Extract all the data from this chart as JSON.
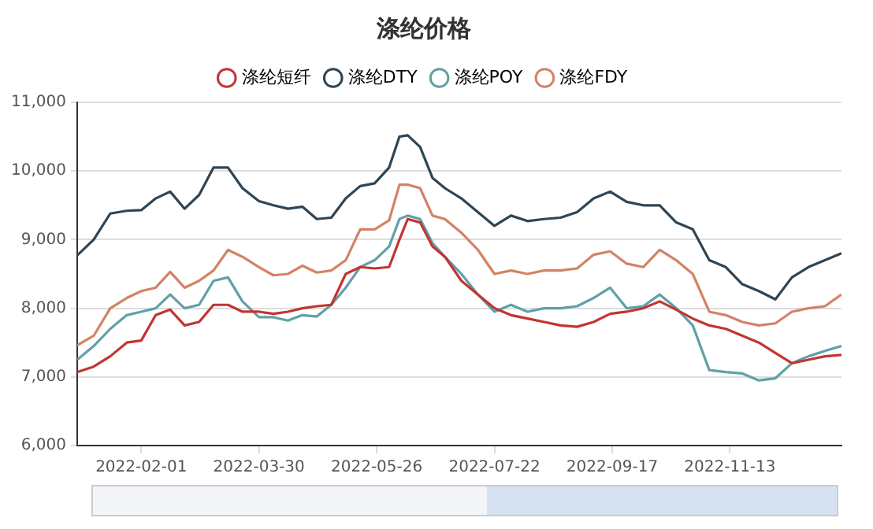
{
  "chart_data": {
    "type": "line",
    "title": "涤纶价格",
    "x": [
      "2022-01-01",
      "2022-01-09",
      "2022-01-17",
      "2022-01-25",
      "2022-02-01",
      "2022-02-08",
      "2022-02-15",
      "2022-02-22",
      "2022-03-01",
      "2022-03-08",
      "2022-03-15",
      "2022-03-22",
      "2022-03-30",
      "2022-04-06",
      "2022-04-13",
      "2022-04-20",
      "2022-04-27",
      "2022-05-04",
      "2022-05-11",
      "2022-05-18",
      "2022-05-25",
      "2022-06-01",
      "2022-06-06",
      "2022-06-10",
      "2022-06-16",
      "2022-06-22",
      "2022-06-28",
      "2022-07-06",
      "2022-07-14",
      "2022-07-22",
      "2022-07-30",
      "2022-08-07",
      "2022-08-15",
      "2022-08-23",
      "2022-08-31",
      "2022-09-08",
      "2022-09-16",
      "2022-09-24",
      "2022-10-02",
      "2022-10-10",
      "2022-10-18",
      "2022-10-26",
      "2022-11-03",
      "2022-11-11",
      "2022-11-19",
      "2022-11-27",
      "2022-12-05",
      "2022-12-13",
      "2022-12-21",
      "2022-12-29",
      "2023-01-06"
    ],
    "series": [
      {
        "name": "涤纶短纤",
        "color": "#c23531",
        "values": [
          7070,
          7150,
          7300,
          7500,
          7530,
          7900,
          7980,
          7750,
          7800,
          8050,
          8050,
          7950,
          7950,
          7920,
          7950,
          8000,
          8030,
          8050,
          8500,
          8600,
          8580,
          8600,
          9000,
          9300,
          9250,
          8900,
          8750,
          8400,
          8200,
          8000,
          7900,
          7850,
          7800,
          7750,
          7730,
          7800,
          7920,
          7950,
          8000,
          8100,
          7980,
          7850,
          7750,
          7700,
          7600,
          7500,
          7350,
          7200,
          7250,
          7300,
          7320
        ]
      },
      {
        "name": "涤纶DTY",
        "color": "#2f4554",
        "values": [
          8770,
          9000,
          9380,
          9420,
          9430,
          9600,
          9700,
          9450,
          9650,
          10050,
          10050,
          9750,
          9560,
          9500,
          9450,
          9480,
          9300,
          9320,
          9600,
          9780,
          9820,
          10050,
          10500,
          10520,
          10350,
          9900,
          9750,
          9600,
          9400,
          9200,
          9350,
          9270,
          9300,
          9320,
          9400,
          9600,
          9700,
          9550,
          9500,
          9500,
          9250,
          9150,
          8700,
          8600,
          8350,
          8250,
          8130,
          8450,
          8600,
          8700,
          8800
        ]
      },
      {
        "name": "涤纶POY",
        "color": "#61a0a8",
        "values": [
          7250,
          7450,
          7700,
          7900,
          7950,
          8000,
          8200,
          8000,
          8050,
          8400,
          8450,
          8100,
          7870,
          7870,
          7820,
          7900,
          7880,
          8050,
          8300,
          8600,
          8700,
          8900,
          9300,
          9350,
          9300,
          8950,
          8750,
          8500,
          8200,
          7950,
          8050,
          7950,
          8000,
          8000,
          8030,
          8150,
          8300,
          8000,
          8030,
          8200,
          8000,
          7750,
          7100,
          7070,
          7050,
          6950,
          6980,
          7200,
          7300,
          7380,
          7450
        ]
      },
      {
        "name": "涤纶FDY",
        "color": "#d48265",
        "values": [
          7460,
          7600,
          8000,
          8150,
          8250,
          8300,
          8530,
          8300,
          8400,
          8550,
          8850,
          8750,
          8600,
          8480,
          8500,
          8620,
          8520,
          8550,
          8700,
          9150,
          9150,
          9280,
          9800,
          9800,
          9750,
          9350,
          9300,
          9100,
          8850,
          8500,
          8550,
          8500,
          8550,
          8550,
          8580,
          8780,
          8830,
          8650,
          8600,
          8850,
          8700,
          8500,
          7950,
          7900,
          7800,
          7750,
          7780,
          7950,
          8000,
          8030,
          8200
        ]
      }
    ],
    "xlim": [
      "2022-01-01",
      "2023-01-06"
    ],
    "xticks": [
      "2022-02-01",
      "2022-03-30",
      "2022-05-26",
      "2022-07-22",
      "2022-09-17",
      "2022-11-13"
    ],
    "ylim": [
      6000,
      11000
    ],
    "yticks": [
      {
        "value": 6000,
        "label": "6,000"
      },
      {
        "value": 7000,
        "label": "7,000"
      },
      {
        "value": 8000,
        "label": "8,000"
      },
      {
        "value": 9000,
        "label": "9,000"
      },
      {
        "value": 10000,
        "label": "10,000"
      },
      {
        "value": 11000,
        "label": "11,000"
      }
    ],
    "grid": "y",
    "legend": "top",
    "marker": "none",
    "line_style": "solid"
  }
}
